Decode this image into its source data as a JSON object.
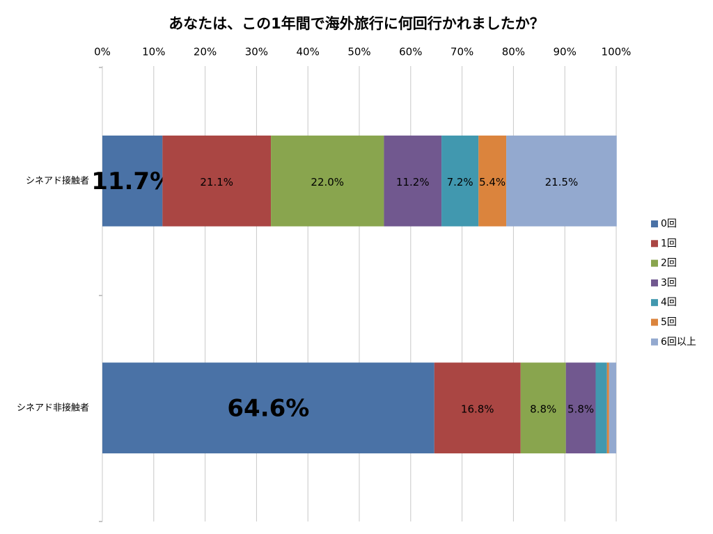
{
  "chart_data": {
    "type": "stacked-bar-horizontal",
    "title": "あなたは、この1年間で海外旅行に何回行かれましたか？",
    "categories": [
      "シネアド接触者",
      "シネアド非接触者"
    ],
    "series": [
      {
        "name": "0回",
        "color": "#4a72a6",
        "values": [
          11.7,
          64.6
        ],
        "value_labels": [
          "11.7%",
          "64.6%"
        ]
      },
      {
        "name": "1回",
        "color": "#aa4643",
        "values": [
          21.1,
          16.8
        ],
        "value_labels": [
          "21.1%",
          "16.8%"
        ]
      },
      {
        "name": "2回",
        "color": "#89a54e",
        "values": [
          22.0,
          8.8
        ],
        "value_labels": [
          "22.0%",
          "8.8%"
        ]
      },
      {
        "name": "3回",
        "color": "#71588f",
        "values": [
          11.2,
          5.8
        ],
        "value_labels": [
          "11.2%",
          "5.8%"
        ]
      },
      {
        "name": "4回",
        "color": "#4198af",
        "values": [
          7.2,
          2.2
        ],
        "value_labels": [
          "7.2%",
          null
        ]
      },
      {
        "name": "5回",
        "color": "#db843d",
        "values": [
          5.4,
          0.4
        ],
        "value_labels": [
          "5.4%",
          null
        ]
      },
      {
        "name": "6回以上",
        "color": "#93a9cf",
        "values": [
          21.5,
          1.4
        ],
        "value_labels": [
          "21.5%",
          null
        ]
      }
    ],
    "xlim": [
      0,
      100
    ],
    "xticks": [
      {
        "value": 0,
        "label": "0%"
      },
      {
        "value": 10,
        "label": "10%"
      },
      {
        "value": 20,
        "label": "20%"
      },
      {
        "value": 30,
        "label": "30%"
      },
      {
        "value": 40,
        "label": "40%"
      },
      {
        "value": 50,
        "label": "50%"
      },
      {
        "value": 60,
        "label": "60%"
      },
      {
        "value": 70,
        "label": "70%"
      },
      {
        "value": 80,
        "label": "80%"
      },
      {
        "value": 90,
        "label": "90%"
      },
      {
        "value": 100,
        "label": "100%"
      }
    ],
    "grid": true,
    "legend": "right"
  }
}
